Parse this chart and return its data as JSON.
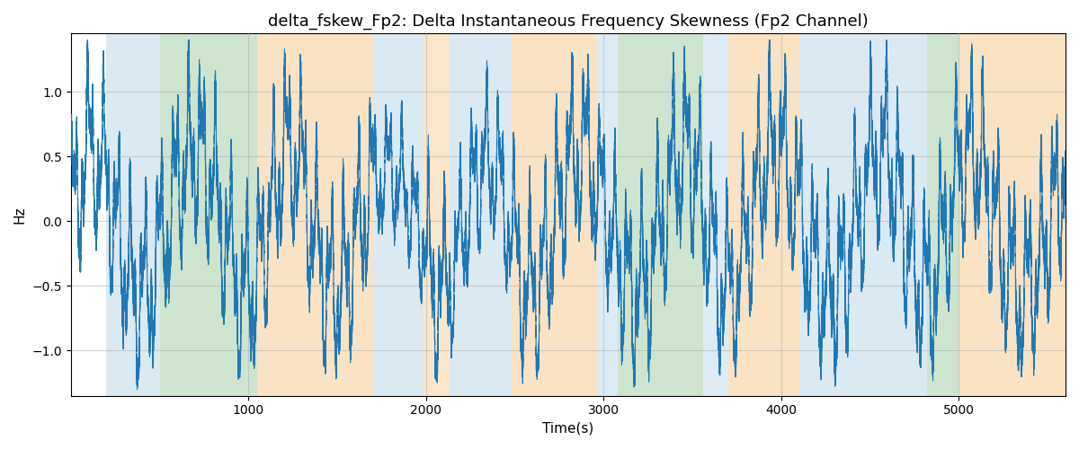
{
  "title": "delta_fskew_Fp2: Delta Instantaneous Frequency Skewness (Fp2 Channel)",
  "xlabel": "Time(s)",
  "ylabel": "Hz",
  "xlim": [
    0,
    5600
  ],
  "ylim": [
    -1.35,
    1.45
  ],
  "line_color": "#1f77b4",
  "line_width": 0.8,
  "background_color": "#ffffff",
  "grid_color": "#aaaaaa",
  "grid_alpha": 0.5,
  "seed": 42,
  "colored_bands": [
    {
      "xmin": 200,
      "xmax": 500,
      "color": "#b8d4e8",
      "alpha": 0.5
    },
    {
      "xmin": 500,
      "xmax": 1050,
      "color": "#9ecb9e",
      "alpha": 0.5
    },
    {
      "xmin": 1050,
      "xmax": 1700,
      "color": "#f5c88a",
      "alpha": 0.5
    },
    {
      "xmin": 1700,
      "xmax": 1980,
      "color": "#b8d4e8",
      "alpha": 0.5
    },
    {
      "xmin": 1980,
      "xmax": 2130,
      "color": "#f5c88a",
      "alpha": 0.45
    },
    {
      "xmin": 2130,
      "xmax": 2480,
      "color": "#b8d4e8",
      "alpha": 0.5
    },
    {
      "xmin": 2480,
      "xmax": 2960,
      "color": "#f5c88a",
      "alpha": 0.5
    },
    {
      "xmin": 2960,
      "xmax": 3080,
      "color": "#b8d4e8",
      "alpha": 0.45
    },
    {
      "xmin": 3080,
      "xmax": 3560,
      "color": "#9ecb9e",
      "alpha": 0.5
    },
    {
      "xmin": 3560,
      "xmax": 3700,
      "color": "#b8d4e8",
      "alpha": 0.45
    },
    {
      "xmin": 3700,
      "xmax": 4100,
      "color": "#f5c88a",
      "alpha": 0.5
    },
    {
      "xmin": 4100,
      "xmax": 4820,
      "color": "#b8d4e8",
      "alpha": 0.5
    },
    {
      "xmin": 4820,
      "xmax": 5000,
      "color": "#9ecb9e",
      "alpha": 0.5
    },
    {
      "xmin": 5000,
      "xmax": 5600,
      "color": "#f5c88a",
      "alpha": 0.5
    }
  ],
  "title_fontsize": 13,
  "axis_fontsize": 11,
  "yticks": [
    -1.0,
    -0.5,
    0.0,
    0.5,
    1.0
  ],
  "xticks": [
    1000,
    2000,
    3000,
    4000,
    5000
  ]
}
